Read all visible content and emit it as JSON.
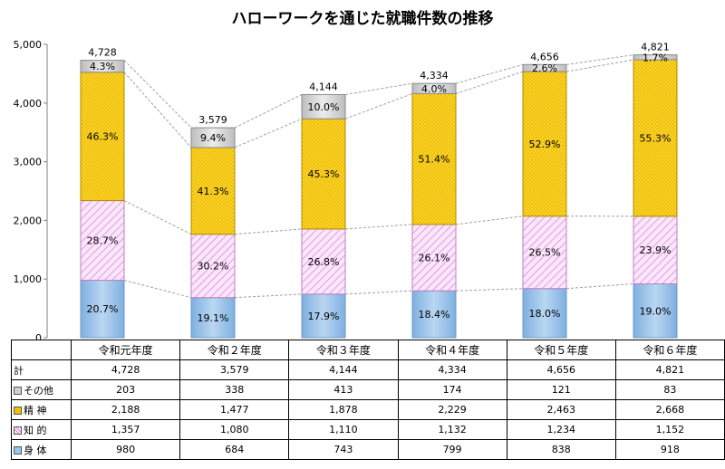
{
  "chart_data": {
    "type": "bar",
    "title": "ハローワークを通じた就職件数の推移",
    "categories": [
      "令和元年度",
      "令和２年度",
      "令和３年度",
      "令和４年度",
      "令和５年度",
      "令和６年度"
    ],
    "ylim": [
      0,
      5000
    ],
    "yticks": [
      "0",
      "1,000",
      "2,000",
      "3,000",
      "4,000",
      "5,000"
    ],
    "grid": false,
    "series": [
      {
        "name": "身 体",
        "values": [
          980,
          684,
          743,
          799,
          838,
          918
        ],
        "pct": [
          "20.7%",
          "19.1%",
          "17.9%",
          "18.4%",
          "18.0%",
          "19.0%"
        ],
        "color": "#9dc3e6"
      },
      {
        "name": "知 的",
        "values": [
          1357,
          1080,
          1110,
          1132,
          1234,
          1152
        ],
        "pct": [
          "28.7%",
          "30.2%",
          "26.8%",
          "26.1%",
          "26.5%",
          "23.9%"
        ],
        "color": "#f4d4f4"
      },
      {
        "name": "精 神",
        "values": [
          2188,
          1477,
          1878,
          2229,
          2463,
          2668
        ],
        "pct": [
          "46.3%",
          "41.3%",
          "45.3%",
          "51.4%",
          "52.9%",
          "55.3%"
        ],
        "color": "#f2c200"
      },
      {
        "name": "その他",
        "values": [
          203,
          338,
          413,
          174,
          121,
          83
        ],
        "pct": [
          "4.3%",
          "9.4%",
          "10.0%",
          "4.0%",
          "2.6%",
          "1.7%"
        ],
        "color": "#d0d0d0"
      }
    ],
    "totals": {
      "name": "計",
      "values": [
        4728,
        3579,
        4144,
        4334,
        4656,
        4821
      ],
      "labels": [
        "4,728",
        "3,579",
        "4,144",
        "4,334",
        "4,656",
        "4,821"
      ]
    },
    "table": {
      "rows": [
        {
          "label": "計",
          "values": [
            "4,728",
            "3,579",
            "4,144",
            "4,334",
            "4,656",
            "4,821"
          ]
        },
        {
          "label": "その他",
          "values": [
            "203",
            "338",
            "413",
            "174",
            "121",
            "83"
          ]
        },
        {
          "label": "精 神",
          "values": [
            "2,188",
            "1,477",
            "1,878",
            "2,229",
            "2,463",
            "2,668"
          ]
        },
        {
          "label": "知 的",
          "values": [
            "1,357",
            "1,080",
            "1,110",
            "1,132",
            "1,234",
            "1,152"
          ]
        },
        {
          "label": "身 体",
          "values": [
            "980",
            "684",
            "743",
            "799",
            "838",
            "918"
          ]
        }
      ]
    }
  }
}
